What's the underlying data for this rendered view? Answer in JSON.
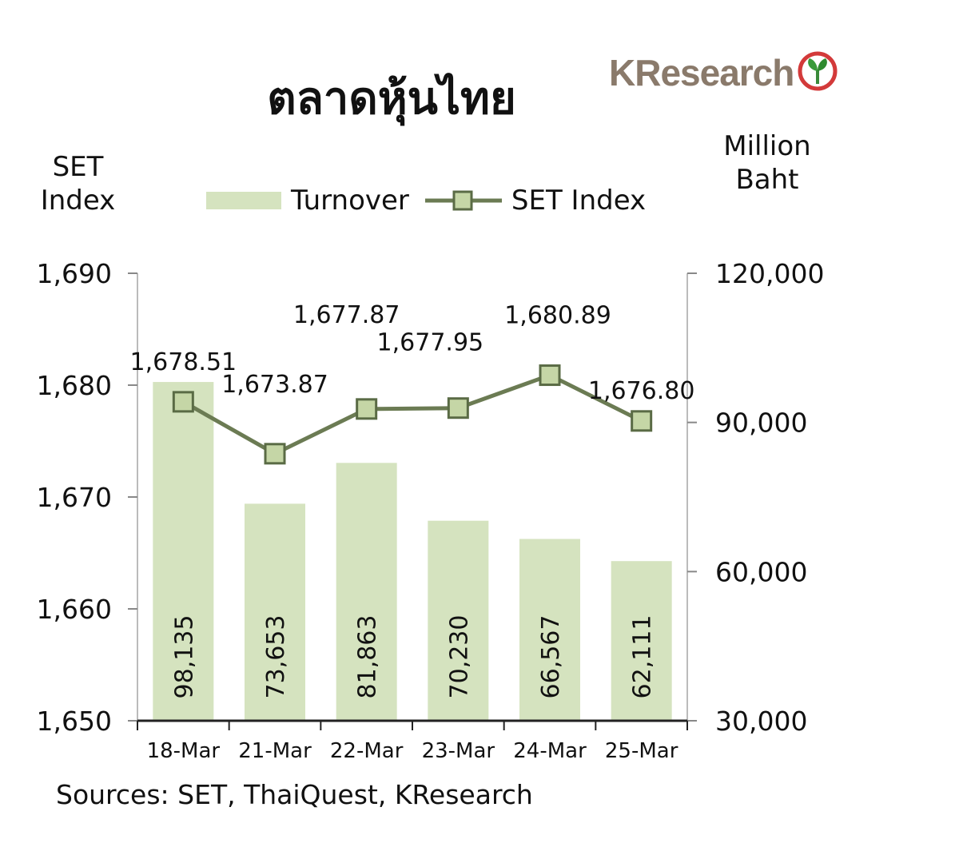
{
  "title": "ตลาดหุ้นไทย",
  "logo": {
    "text": "KResearch",
    "icon": "kasikorn-leaf-logo-icon"
  },
  "legend": {
    "bar_label": "Turnover",
    "line_label": "SET Index"
  },
  "source": "Sources: SET, ThaiQuest, KResearch",
  "colors": {
    "bar": "#d5e3bf",
    "line": "#6b7b53",
    "marker_fill": "#c5d6a6",
    "marker_stroke": "#5a6b45",
    "axis": "#222222"
  },
  "chart_data": {
    "type": "bar",
    "categories": [
      "18-Mar",
      "21-Mar",
      "22-Mar",
      "23-Mar",
      "24-Mar",
      "25-Mar"
    ],
    "series": [
      {
        "name": "Turnover",
        "type": "bar",
        "axis": "right",
        "values": [
          98135,
          73653,
          81863,
          70230,
          66567,
          62111
        ],
        "value_labels": [
          "98,135",
          "73,653",
          "81,863",
          "70,230",
          "66,567",
          "62,111"
        ]
      },
      {
        "name": "SET Index",
        "type": "line",
        "axis": "left",
        "values": [
          1678.51,
          1673.87,
          1677.87,
          1677.95,
          1680.89,
          1676.8
        ],
        "value_labels": [
          "1,678.51",
          "1,673.87",
          "1,677.87",
          "1,677.95",
          "1,680.89",
          "1,676.80"
        ]
      }
    ],
    "y_left": {
      "label": "SET Index",
      "range": [
        1650,
        1690
      ],
      "ticks": [
        1650,
        1660,
        1670,
        1680,
        1690
      ],
      "tick_labels": [
        "1,650",
        "1,660",
        "1,670",
        "1,680",
        "1,690"
      ]
    },
    "y_right": {
      "label": "Million Baht",
      "range": [
        30000,
        120000
      ],
      "ticks": [
        30000,
        60000,
        90000,
        120000
      ],
      "tick_labels": [
        "30,000",
        "60,000",
        "90,000",
        "120,000"
      ]
    },
    "grid": false,
    "legend_position": "top"
  }
}
